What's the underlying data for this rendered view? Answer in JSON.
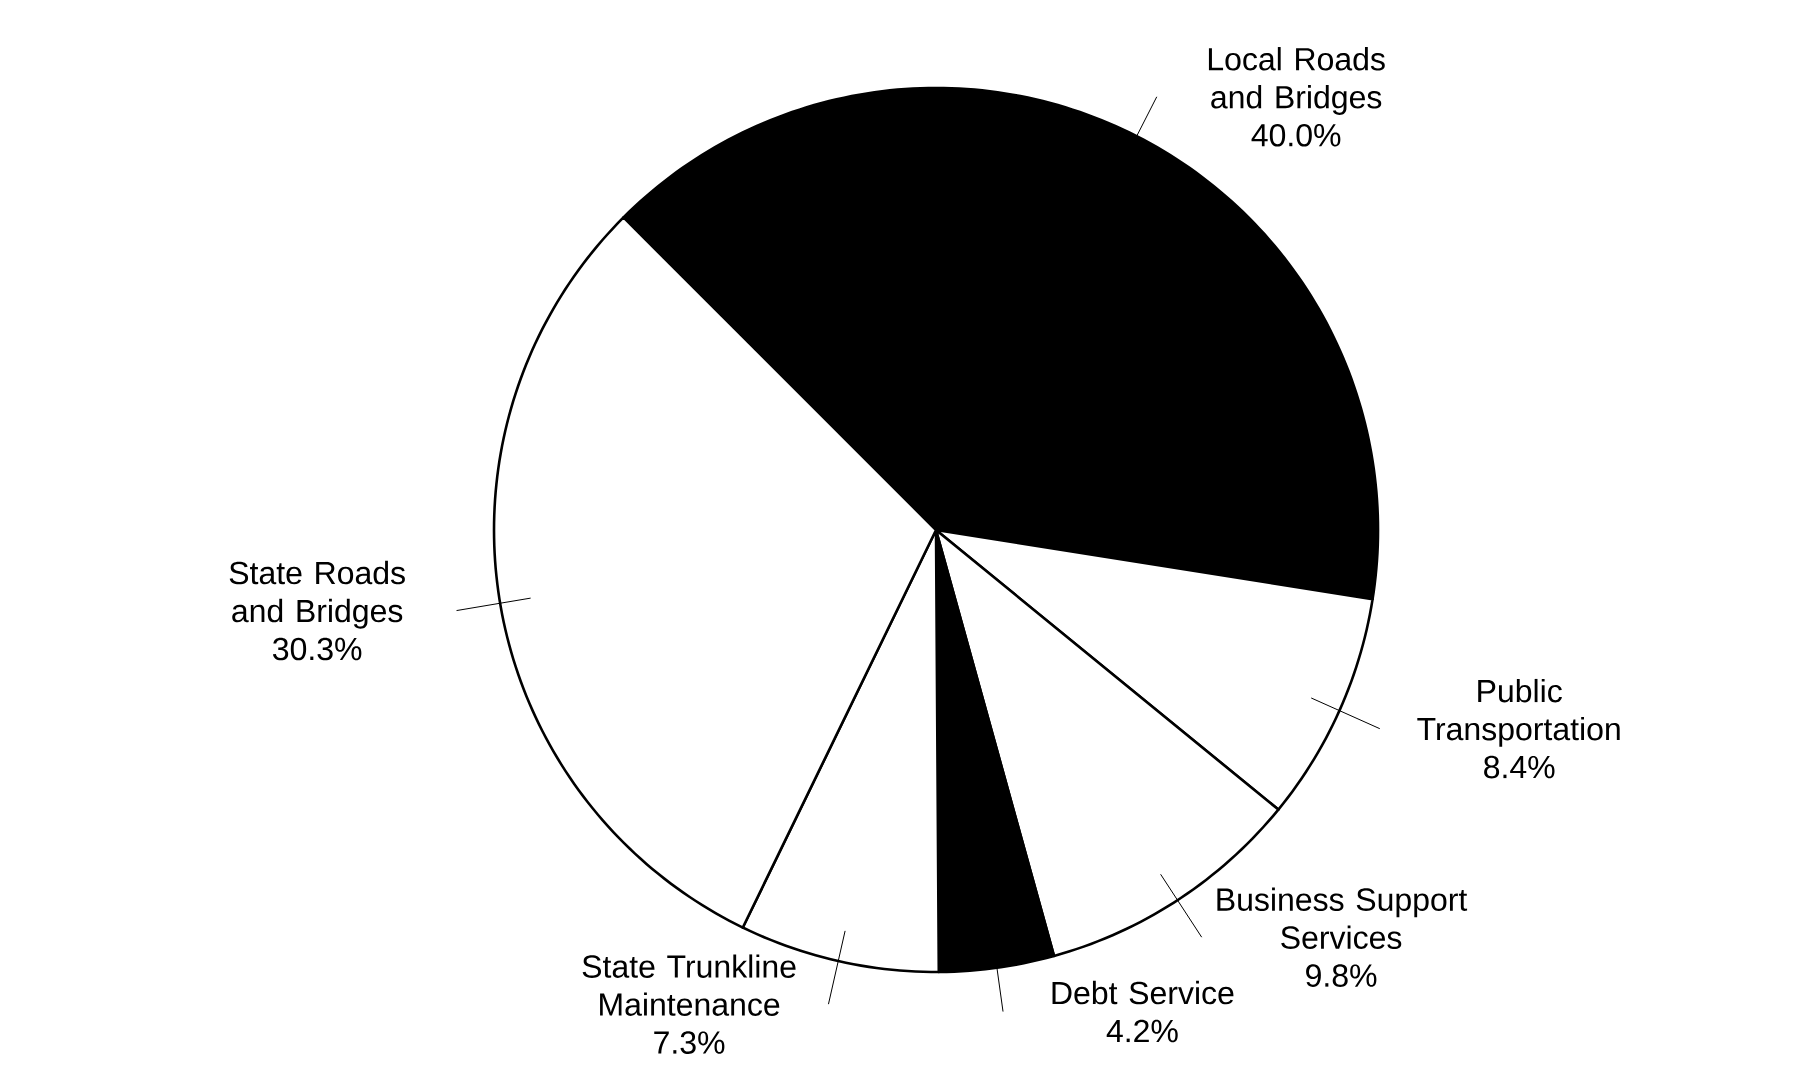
{
  "chart_data": {
    "type": "pie",
    "categories": [
      "Local Roads and Bridges",
      "Public Transportation",
      "Business Support Services",
      "Debt Service",
      "State Trunkline Maintenance",
      "State Roads and Bridges"
    ],
    "values": [
      40.0,
      8.4,
      9.8,
      4.2,
      7.3,
      30.3
    ],
    "colors": [
      "#000000",
      "#ffffff",
      "#ffffff",
      "#000000",
      "#ffffff",
      "#ffffff"
    ],
    "value_labels": [
      "40.0%",
      "8.4%",
      "9.8%",
      "4.2%",
      "7.3%",
      "30.3%"
    ]
  }
}
